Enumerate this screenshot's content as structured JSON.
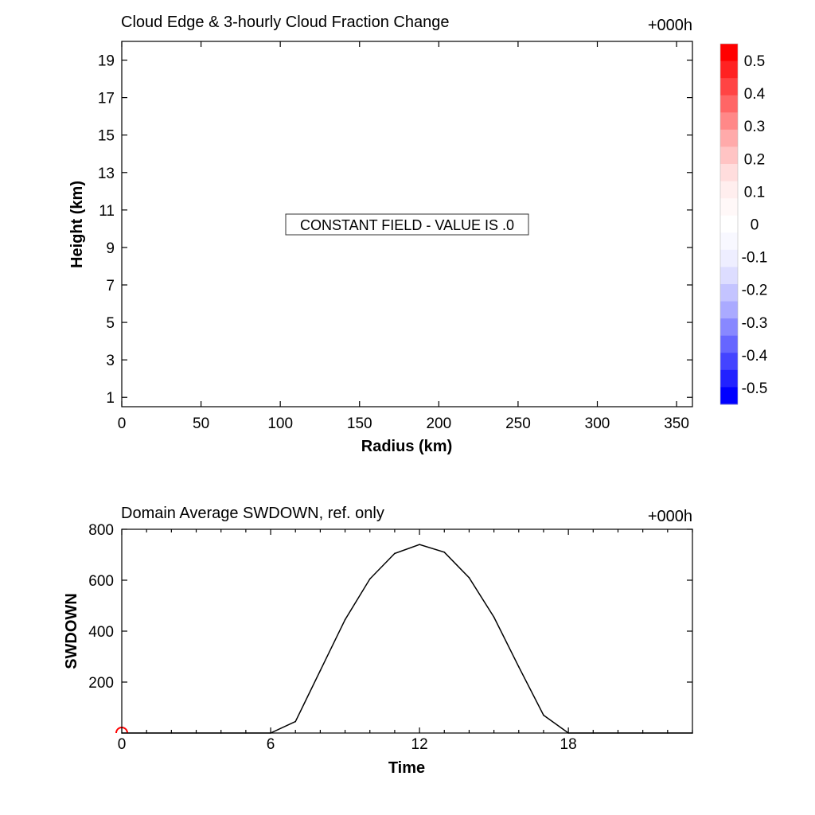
{
  "chart_data": [
    {
      "type": "heatmap",
      "title": "Cloud Edge & 3-hourly Cloud Fraction Change",
      "time_label": "+000h",
      "xlabel": "Radius (km)",
      "ylabel": "Height (km)",
      "xlim": [
        0,
        360
      ],
      "ylim": [
        0.5,
        20
      ],
      "xticks": [
        0,
        50,
        100,
        150,
        200,
        250,
        300,
        350
      ],
      "yticks": [
        1,
        3,
        5,
        7,
        9,
        11,
        13,
        15,
        17,
        19
      ],
      "annotation": "CONSTANT FIELD - VALUE IS .0",
      "value": 0,
      "colorbar": {
        "labels": [
          "0.5",
          "0.4",
          "0.3",
          "0.2",
          "0.1",
          "0",
          "-0.1",
          "-0.2",
          "-0.3",
          "-0.4",
          "-0.5"
        ],
        "colors": [
          "#ff0000",
          "#ff2222",
          "#ff4444",
          "#ff6666",
          "#ff8888",
          "#ffaaaa",
          "#ffc4c4",
          "#ffdddd",
          "#ffeeee",
          "#fff8f8",
          "#ffffff",
          "#f8f8ff",
          "#eeeeff",
          "#ddddff",
          "#c4c4ff",
          "#aaaaff",
          "#8888ff",
          "#6666ff",
          "#4444ff",
          "#2222ff",
          "#0000ff"
        ]
      }
    },
    {
      "type": "line",
      "title": "Domain Average SWDOWN, ref. only",
      "time_label": "+000h",
      "xlabel": "Time",
      "ylabel": "SWDOWN",
      "xlim": [
        0,
        23
      ],
      "ylim": [
        0,
        800
      ],
      "xticks": [
        0,
        6,
        12,
        18
      ],
      "yticks": [
        200,
        400,
        600,
        800
      ],
      "x": [
        0,
        1,
        2,
        3,
        4,
        5,
        6,
        7,
        8,
        9,
        10,
        11,
        12,
        13,
        14,
        15,
        16,
        17,
        18,
        19,
        20,
        21,
        22,
        23
      ],
      "series": [
        {
          "values": [
            0,
            0,
            0,
            0,
            0,
            0,
            0,
            45,
            245,
            445,
            605,
            705,
            740,
            710,
            610,
            455,
            260,
            70,
            0,
            0,
            0,
            0,
            0,
            0
          ],
          "color": "#000000"
        }
      ],
      "marker": {
        "x": 0,
        "y": 0,
        "color": "#ff0000"
      }
    }
  ]
}
